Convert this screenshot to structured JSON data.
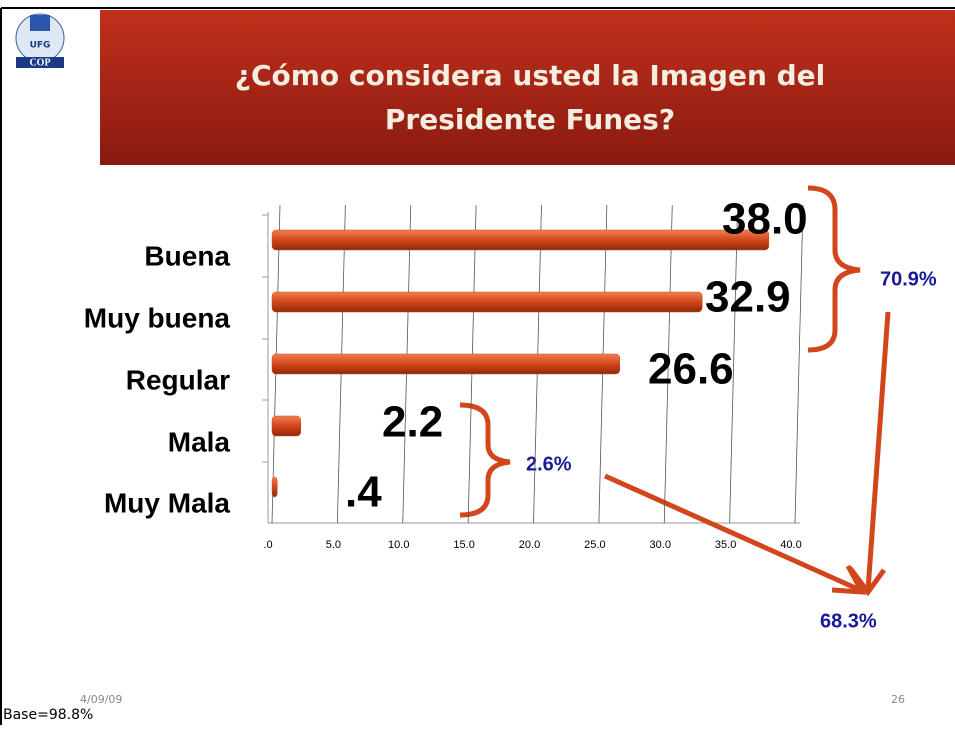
{
  "header": {
    "logo_top": "UFG",
    "logo_bottom": "COP",
    "title_line1": "¿Cómo considera usted la Imagen del",
    "title_line2": "Presidente Funes?"
  },
  "chart_data": {
    "type": "bar",
    "orientation": "horizontal",
    "categories": [
      "Buena",
      "Muy buena",
      "Regular",
      "Mala",
      "Muy Mala"
    ],
    "values": [
      38.0,
      32.9,
      26.6,
      2.2,
      0.4
    ],
    "value_labels": [
      "38.0",
      "32.9",
      "26.6",
      "2.2",
      ".4"
    ],
    "color": "#d2461b",
    "xlim": [
      0,
      40
    ],
    "xticks": [
      {
        "value": 0,
        "label": ".0"
      },
      {
        "value": 5,
        "label": "5.0"
      },
      {
        "value": 10,
        "label": "10.0"
      },
      {
        "value": 15,
        "label": "15.0"
      },
      {
        "value": 20,
        "label": "20.0"
      },
      {
        "value": 25,
        "label": "25.0"
      },
      {
        "value": 30,
        "label": "30.0"
      },
      {
        "value": 35,
        "label": "35.0"
      },
      {
        "value": 40,
        "label": "40.0"
      }
    ],
    "grid": true,
    "annotations": [
      "70.9%",
      "2.6%",
      "68.3%"
    ]
  },
  "footer": {
    "date": "4/09/09",
    "page": "26",
    "base": "Base=98.8%"
  }
}
